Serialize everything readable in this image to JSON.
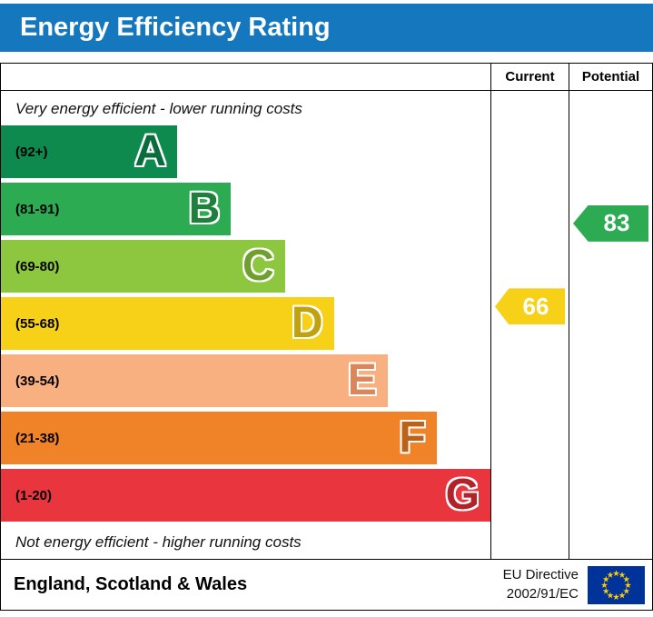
{
  "title": "Energy Efficiency Rating",
  "colors": {
    "banner_bg": "#1577bd",
    "banner_text": "#ffffff",
    "border": "#000000",
    "flag_bg": "#003399",
    "flag_stars": "#ffcc00"
  },
  "table_header": {
    "current": "Current",
    "potential": "Potential"
  },
  "captions": {
    "top": "Very energy efficient - lower running costs",
    "bottom": "Not energy efficient - higher running costs"
  },
  "footer": {
    "region": "England, Scotland & Wales",
    "directive_line1": "EU Directive",
    "directive_line2": "2002/91/EC"
  },
  "chart_data": {
    "type": "bar",
    "orientation": "horizontal",
    "title": "Energy Efficiency Rating",
    "bands": [
      {
        "letter": "A",
        "range": "(92+)",
        "min": 92,
        "max": 100,
        "color": "#0e8a4e",
        "letter_color": "#0a6b3c",
        "width_pct": 36
      },
      {
        "letter": "B",
        "range": "(81-91)",
        "min": 81,
        "max": 91,
        "color": "#2dab53",
        "letter_color": "#1f7f3d",
        "width_pct": 47
      },
      {
        "letter": "C",
        "range": "(69-80)",
        "min": 69,
        "max": 80,
        "color": "#8dc63f",
        "letter_color": "#6fa02f",
        "width_pct": 58
      },
      {
        "letter": "D",
        "range": "(55-68)",
        "min": 55,
        "max": 68,
        "color": "#f7d117",
        "letter_color": "#bfa20e",
        "width_pct": 68
      },
      {
        "letter": "E",
        "range": "(39-54)",
        "min": 39,
        "max": 54,
        "color": "#f8b081",
        "letter_color": "#d8865a",
        "width_pct": 79
      },
      {
        "letter": "F",
        "range": "(21-38)",
        "min": 21,
        "max": 38,
        "color": "#f08327",
        "letter_color": "#bb611a",
        "width_pct": 89
      },
      {
        "letter": "G",
        "range": "(1-20)",
        "min": 1,
        "max": 20,
        "color": "#e9353d",
        "letter_color": "#b2222b",
        "width_pct": 100
      }
    ],
    "current": {
      "value": 66,
      "color": "#f7d117"
    },
    "potential": {
      "value": 83,
      "color": "#2dab53"
    }
  }
}
